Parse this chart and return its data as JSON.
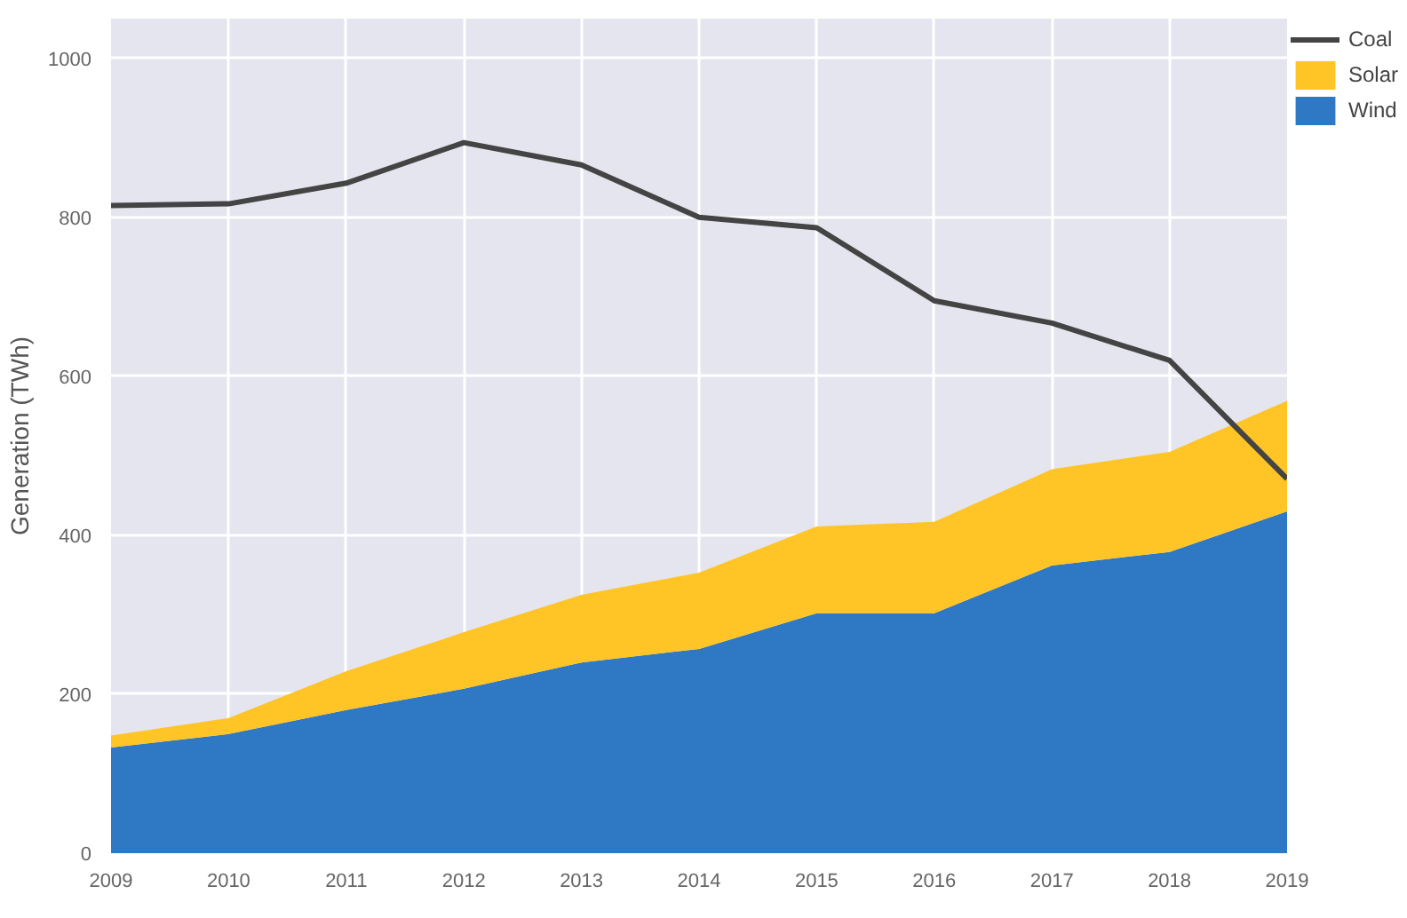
{
  "chart_data": {
    "type": "area",
    "stacked": true,
    "ylabel": "Generation (TWh)",
    "x": [
      2009,
      2010,
      2011,
      2012,
      2013,
      2014,
      2015,
      2016,
      2017,
      2018,
      2019
    ],
    "series": [
      {
        "name": "Coal",
        "type": "line",
        "color": "#444444",
        "values": [
          815,
          817,
          843,
          894,
          866,
          800,
          787,
          695,
          667,
          620,
          471
        ]
      },
      {
        "name": "Wind",
        "color": "#2f78c4",
        "values": [
          133,
          150,
          180,
          207,
          240,
          257,
          302,
          302,
          362,
          379,
          430
        ]
      },
      {
        "name": "Solar",
        "color": "#ffc425",
        "values": [
          15,
          20,
          49,
          71,
          85,
          96,
          109,
          115,
          121,
          126,
          139
        ]
      }
    ],
    "xlim": [
      2009,
      2019
    ],
    "ylim": [
      0,
      1050
    ],
    "xticks": [
      2009,
      2010,
      2011,
      2012,
      2013,
      2014,
      2015,
      2016,
      2017,
      2018,
      2019
    ],
    "yticks": [
      0,
      200,
      400,
      600,
      800,
      1000
    ],
    "grid": true,
    "legend": "top right"
  }
}
